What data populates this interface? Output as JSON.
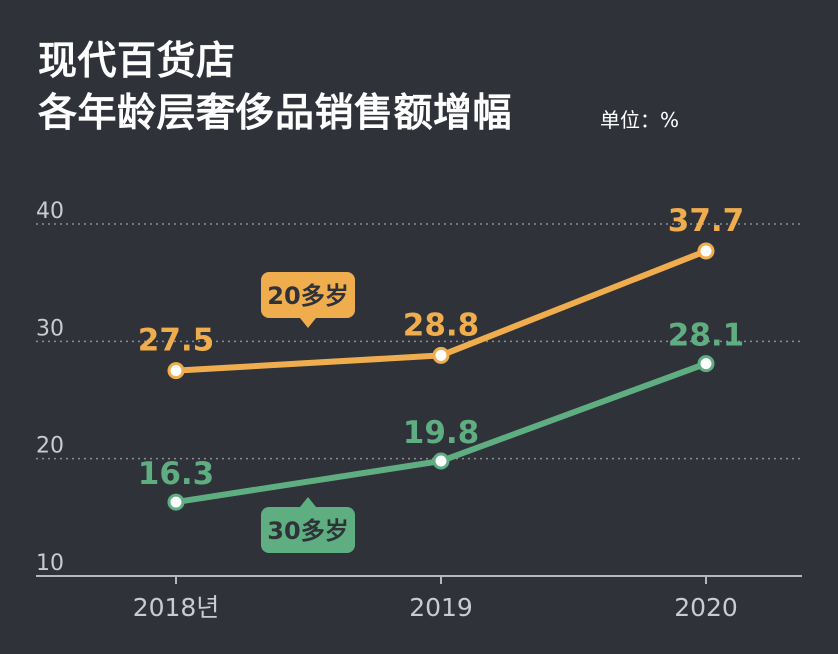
{
  "title_line1": "现代百货店",
  "title_line2": "各年龄层奢侈品销售额增幅",
  "unit_label": "单位：%",
  "colors": {
    "background": "#2f3238",
    "series_20s": "#f0ad4e",
    "series_30s": "#5fae82",
    "grid": "#8a8d92",
    "axis": "#b5b7ba",
    "tick_text": "#c9cbce"
  },
  "chart_data": {
    "type": "line",
    "x": [
      "2018년",
      "2019",
      "2020"
    ],
    "series": [
      {
        "name": "20多岁",
        "values": [
          27.5,
          28.8,
          37.7
        ],
        "color": "#f0ad4e",
        "labels": [
          "27.5",
          "28.8",
          "37.7"
        ]
      },
      {
        "name": "30多岁",
        "values": [
          16.3,
          19.8,
          28.1
        ],
        "color": "#5fae82",
        "labels": [
          "16.3",
          "19.8",
          "28.1"
        ]
      }
    ],
    "y_ticks": [
      10,
      20,
      30,
      40
    ],
    "ylim": [
      10,
      40
    ],
    "grid": true,
    "legend": "inline callouts"
  }
}
